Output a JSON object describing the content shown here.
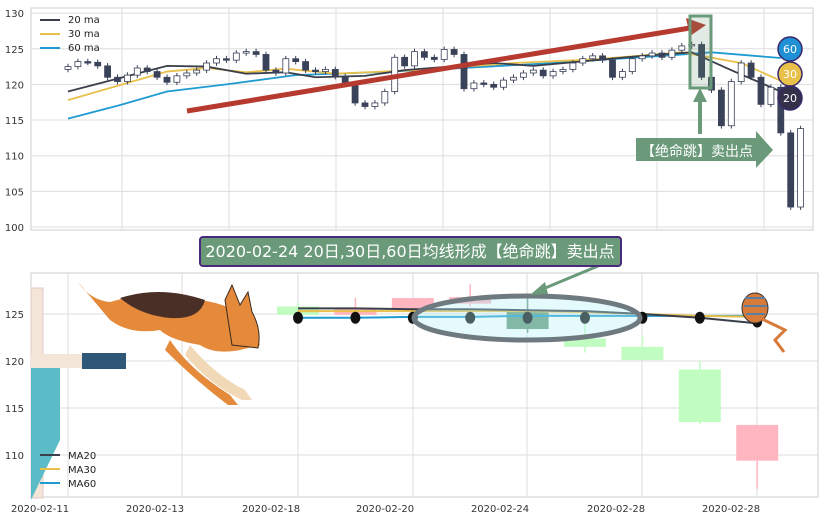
{
  "chart_data": [
    {
      "type": "candlestick",
      "ylim": [
        100,
        130
      ],
      "yticks": [
        "100",
        "105",
        "110",
        "115",
        "120",
        "125",
        "130"
      ],
      "grid": true,
      "legend_position": "top-left",
      "legend": [
        "20 ma",
        "30 ma",
        "60 ma"
      ],
      "colors": {
        "ma20": "#3a3f4b",
        "ma30": "#e8c04a",
        "ma60": "#1f9bd1",
        "up": "#ffffff",
        "down": "#3a4259"
      },
      "closes": [
        122.5,
        123.2,
        123.1,
        122.6,
        121.0,
        120.4,
        121.3,
        122.3,
        121.8,
        121.0,
        120.3,
        121.2,
        121.6,
        122.0,
        123.0,
        123.6,
        123.4,
        124.4,
        124.6,
        124.2,
        122.0,
        121.6,
        123.6,
        123.2,
        122.0,
        121.8,
        122.1,
        121.1,
        120.0,
        117.4,
        116.9,
        117.4,
        119.0,
        123.8,
        122.6,
        124.6,
        123.8,
        123.5,
        124.9,
        124.2,
        119.4,
        120.2,
        120.0,
        119.6,
        120.6,
        121.0,
        121.6,
        122.0,
        121.2,
        121.8,
        122.1,
        123.0,
        123.6,
        124.0,
        123.4,
        121.0,
        121.8,
        123.6,
        124.0,
        124.4,
        123.8,
        124.8,
        125.4,
        125.6,
        121.0,
        119.2,
        114.2,
        120.4,
        123.0,
        121.0,
        117.2,
        119.6,
        113.2,
        102.8,
        113.8
      ],
      "ma20": [
        [
          0,
          119.0
        ],
        [
          10,
          122.6
        ],
        [
          14,
          122.5
        ],
        [
          18,
          121.5
        ],
        [
          22,
          121.7
        ],
        [
          25,
          121.0
        ],
        [
          30,
          121.2
        ],
        [
          34,
          122.0
        ],
        [
          43,
          123.0
        ],
        [
          47,
          122.6
        ],
        [
          58,
          124.0
        ],
        [
          63,
          124.5
        ],
        [
          67,
          122.0
        ],
        [
          72,
          119.0
        ]
      ],
      "ma30": [
        [
          0,
          117.8
        ],
        [
          3,
          119.0
        ],
        [
          10,
          121.8
        ],
        [
          14,
          122.3
        ],
        [
          18,
          121.7
        ],
        [
          22,
          122.2
        ],
        [
          27,
          121.5
        ],
        [
          35,
          122.0
        ],
        [
          45,
          123.0
        ],
        [
          53,
          123.5
        ],
        [
          62,
          124.5
        ],
        [
          68,
          123.0
        ],
        [
          72,
          120.5
        ]
      ],
      "ma60": [
        [
          0,
          115.2
        ],
        [
          5,
          117.0
        ],
        [
          10,
          119.0
        ],
        [
          16,
          120.0
        ],
        [
          23,
          121.3
        ],
        [
          31,
          121.7
        ],
        [
          36,
          122.0
        ],
        [
          49,
          123.0
        ],
        [
          61,
          124.1
        ],
        [
          65,
          124.5
        ],
        [
          72,
          123.7
        ]
      ],
      "annotations": {
        "signal_label": "【绝命跳】卖出点",
        "badges": [
          "60",
          "30",
          "20"
        ]
      }
    },
    {
      "type": "candlestick",
      "ylim": [
        106,
        129
      ],
      "yticks": [
        "110",
        "115",
        "120",
        "125"
      ],
      "xticks": [
        "2020-02-11",
        "2020-02-13",
        "2020-02-18",
        "2020-02-20",
        "2020-02-24",
        "2020-02-28",
        "2020-02-28"
      ],
      "grid": true,
      "legend_position": "bottom-left",
      "legend": [
        "MA20",
        "MA30",
        "MA60"
      ],
      "colors": {
        "up": "#c1fcc1",
        "down": "#ffb6c1",
        "highlight": "#6a9a7a",
        "ma20": "#3a3f4b",
        "ma30": "#e8c04a",
        "ma60": "#1f9bd1"
      },
      "candles": [
        {
          "open": 124.9,
          "close": 125.8,
          "high": 126.2,
          "low": 124.9,
          "color": "up"
        },
        {
          "open": 125.5,
          "close": 124.9,
          "high": 126.7,
          "low": 124.9,
          "color": "down"
        },
        {
          "open": 126.7,
          "close": 125.5,
          "high": 126.7,
          "low": 125.5,
          "color": "down"
        },
        {
          "open": 126.8,
          "close": 126.1,
          "high": 128.2,
          "low": 125.8,
          "color": "down"
        },
        {
          "open": 125.3,
          "close": 123.4,
          "high": 126.8,
          "low": 123.0,
          "color": "highlight"
        },
        {
          "open": 121.5,
          "close": 122.4,
          "high": 124.0,
          "low": 120.9,
          "color": "up"
        },
        {
          "open": 120.1,
          "close": 121.5,
          "high": 122.7,
          "low": 120.1,
          "color": "up"
        },
        {
          "open": 113.5,
          "close": 119.1,
          "high": 120.0,
          "low": 113.3,
          "color": "up"
        },
        {
          "open": 113.2,
          "close": 109.4,
          "high": 113.2,
          "low": 106.4,
          "color": "down"
        }
      ],
      "ma20": [
        125.6,
        125.6,
        125.5,
        125.5,
        125.4,
        125.3,
        125.0,
        124.6,
        124.0
      ],
      "ma30": [
        125.3,
        125.3,
        125.3,
        125.3,
        125.3,
        125.2,
        125.0,
        124.8,
        124.7
      ],
      "ma60": [
        124.6,
        124.6,
        124.7,
        124.7,
        124.8,
        124.8,
        124.8,
        124.8,
        124.8
      ],
      "markers": [
        124.6,
        124.6,
        124.6,
        124.6,
        124.6,
        124.6,
        124.6,
        124.6,
        124.2
      ],
      "annotations": {
        "title": "2020-02-24 20日,30日,60日均线形成【绝命跳】卖出点"
      }
    }
  ]
}
